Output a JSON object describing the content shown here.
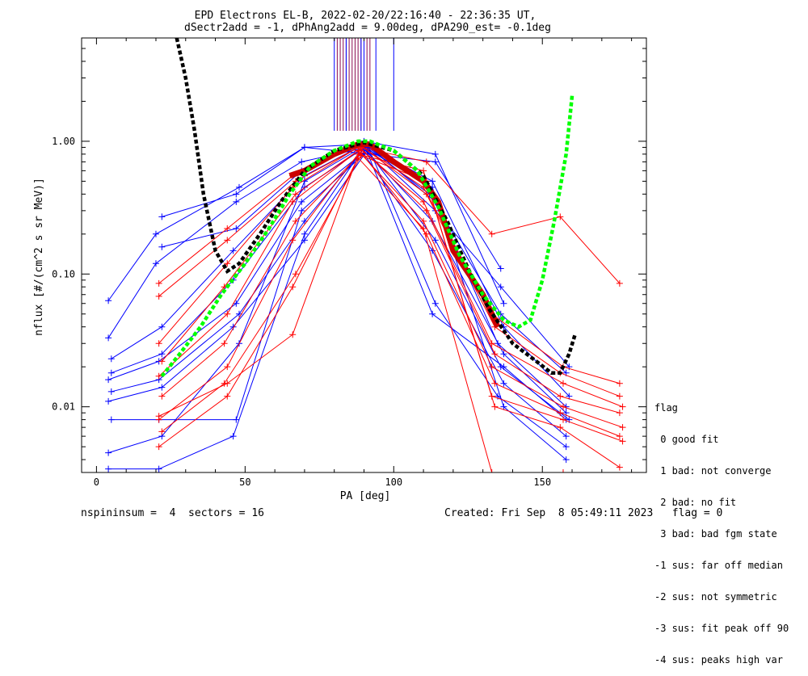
{
  "title_line1": "EPD Electrons EL-B, 2022-02-20/22:16:40 - 22:36:35 UT,",
  "title_line2": "dSectr2add = -1, dPhAng2add = 9.00deg, dPA290_est=  -0.1deg",
  "footer_left": "nspininsum =  4  sectors = 16",
  "footer_right": "Created: Fri Sep  8 05:49:11 2023   flag = 0",
  "flag_legend": {
    "title": "flag",
    "items": [
      " 0 good fit",
      " 1 bad: not converge",
      " 2 bad: no fit",
      " 3 bad: bad fgm state",
      "-1 sus: far off median",
      "-2 sus: not symmetric",
      "-3 sus: fit peak off 90",
      "-4 sus: peaks high var"
    ]
  },
  "colors": {
    "blue": "#0000ff",
    "red": "#ff0000",
    "median": "#cc0000",
    "black_fit": "#000000",
    "green_fit": "#00ff00",
    "vline_purple": "#8b0a50",
    "vline_blue": "#0000ff"
  },
  "chart_data": {
    "type": "line",
    "xlabel": "PA [deg]",
    "ylabel": "nflux [#/(cm^2 s sr MeV)]",
    "xlim": [
      -5,
      185
    ],
    "ylim": [
      0.0032,
      6.0
    ],
    "yscale": "log",
    "xticks": [
      0,
      50,
      100,
      150
    ],
    "yticks": [
      0.01,
      0.1,
      1.0
    ],
    "ytick_labels": [
      "0.01",
      "0.10",
      "1.00"
    ],
    "vertical_lines": {
      "ymin": 1.2,
      "purple_x": [
        81,
        82,
        83,
        84,
        85,
        86,
        87,
        88,
        89,
        90,
        91,
        92
      ],
      "blue_x": [
        80,
        84,
        89,
        90,
        94,
        100
      ]
    },
    "series": [
      {
        "color": "blue",
        "x": [
          4,
          20,
          48,
          70,
          90,
          113,
          137,
          158
        ],
        "y": [
          0.063,
          0.2,
          0.45,
          0.9,
          0.95,
          0.05,
          0.02,
          0.008
        ]
      },
      {
        "color": "blue",
        "x": [
          4,
          20,
          47,
          69,
          91,
          114,
          136,
          159
        ],
        "y": [
          0.033,
          0.12,
          0.35,
          0.7,
          0.9,
          0.3,
          0.08,
          0.02
        ]
      },
      {
        "color": "blue",
        "x": [
          5,
          22,
          46,
          70,
          90,
          112,
          136,
          158
        ],
        "y": [
          0.023,
          0.04,
          0.15,
          0.55,
          0.95,
          0.4,
          0.05,
          0.018
        ]
      },
      {
        "color": "blue",
        "x": [
          5,
          22,
          46,
          70,
          91,
          113,
          137,
          159
        ],
        "y": [
          0.018,
          0.025,
          0.09,
          0.45,
          0.92,
          0.5,
          0.04,
          0.012
        ]
      },
      {
        "color": "blue",
        "x": [
          4,
          21,
          47,
          69,
          92,
          114,
          135,
          158
        ],
        "y": [
          0.016,
          0.022,
          0.06,
          0.35,
          0.9,
          0.35,
          0.03,
          0.01
        ]
      },
      {
        "color": "blue",
        "x": [
          5,
          21,
          48,
          70,
          90,
          113,
          137,
          158
        ],
        "y": [
          0.013,
          0.016,
          0.05,
          0.25,
          0.88,
          0.25,
          0.025,
          0.009
        ]
      },
      {
        "color": "blue",
        "x": [
          4,
          22,
          46,
          70,
          91,
          114,
          136,
          159
        ],
        "y": [
          0.011,
          0.014,
          0.04,
          0.18,
          0.85,
          0.18,
          0.02,
          0.008
        ]
      },
      {
        "color": "blue",
        "x": [
          5,
          21,
          47,
          69,
          90,
          113,
          137,
          158
        ],
        "y": [
          0.008,
          0.008,
          0.008,
          0.3,
          0.8,
          0.15,
          0.015,
          0.006
        ]
      },
      {
        "color": "blue",
        "x": [
          4,
          22,
          48,
          70,
          91,
          114,
          135,
          158
        ],
        "y": [
          0.0045,
          0.006,
          0.03,
          0.5,
          0.95,
          0.06,
          0.012,
          0.005
        ]
      },
      {
        "color": "blue",
        "x": [
          4,
          21,
          46,
          70,
          90,
          113,
          137,
          158
        ],
        "y": [
          0.0034,
          0.0034,
          0.006,
          0.2,
          0.9,
          0.45,
          0.01,
          0.004
        ]
      },
      {
        "color": "blue",
        "x": [
          22,
          47,
          70,
          92,
          114,
          136
        ],
        "y": [
          0.27,
          0.4,
          0.9,
          0.8,
          0.7,
          0.11
        ]
      },
      {
        "color": "blue",
        "x": [
          22,
          47,
          69,
          90,
          114,
          137
        ],
        "y": [
          0.16,
          0.22,
          0.6,
          1.0,
          0.8,
          0.06
        ]
      },
      {
        "color": "red",
        "x": [
          21,
          44,
          66,
          88,
          110,
          133,
          157,
          176
        ],
        "y": [
          0.085,
          0.22,
          0.55,
          0.95,
          0.45,
          0.05,
          0.02,
          0.015
        ]
      },
      {
        "color": "red",
        "x": [
          21,
          44,
          67,
          89,
          111,
          134,
          156,
          176
        ],
        "y": [
          0.068,
          0.18,
          0.5,
          0.92,
          0.4,
          0.04,
          0.018,
          0.012
        ]
      },
      {
        "color": "red",
        "x": [
          21,
          44,
          66,
          88,
          110,
          133,
          157,
          177
        ],
        "y": [
          0.03,
          0.12,
          0.45,
          0.9,
          0.35,
          0.03,
          0.015,
          0.01
        ]
      },
      {
        "color": "red",
        "x": [
          22,
          43,
          67,
          89,
          111,
          134,
          156,
          176
        ],
        "y": [
          0.022,
          0.08,
          0.4,
          0.88,
          0.3,
          0.025,
          0.012,
          0.009
        ]
      },
      {
        "color": "red",
        "x": [
          21,
          44,
          66,
          88,
          110,
          133,
          157,
          177
        ],
        "y": [
          0.017,
          0.05,
          0.35,
          0.85,
          0.25,
          0.02,
          0.01,
          0.007
        ]
      },
      {
        "color": "red",
        "x": [
          22,
          43,
          67,
          89,
          111,
          134,
          156,
          176
        ],
        "y": [
          0.012,
          0.03,
          0.25,
          0.82,
          0.2,
          0.015,
          0.009,
          0.006
        ]
      },
      {
        "color": "red",
        "x": [
          21,
          44,
          66,
          88,
          110,
          133,
          157,
          177
        ],
        "y": [
          0.008,
          0.02,
          0.18,
          0.8,
          0.6,
          0.012,
          0.008,
          0.0055
        ]
      },
      {
        "color": "red",
        "x": [
          22,
          43,
          67,
          89,
          111,
          134,
          156,
          176
        ],
        "y": [
          0.0065,
          0.015,
          0.1,
          0.78,
          0.5,
          0.01,
          0.007,
          0.0035
        ]
      },
      {
        "color": "red",
        "x": [
          21,
          44,
          66,
          88,
          110,
          133,
          157
        ],
        "y": [
          0.005,
          0.012,
          0.08,
          0.75,
          0.22,
          0.0032,
          0.0032
        ]
      },
      {
        "color": "red",
        "x": [
          21,
          44,
          66,
          89,
          111,
          133,
          156,
          176
        ],
        "y": [
          0.0085,
          0.015,
          0.035,
          0.9,
          0.7,
          0.2,
          0.27,
          0.085
        ]
      }
    ],
    "median": {
      "x": [
        65,
        70,
        80,
        88,
        92,
        100,
        110,
        115,
        120,
        130,
        135
      ],
      "y": [
        0.55,
        0.6,
        0.8,
        0.95,
        0.95,
        0.7,
        0.5,
        0.35,
        0.15,
        0.07,
        0.04
      ]
    },
    "fits": [
      {
        "name": "black",
        "x": [
          27,
          30,
          33,
          36,
          40,
          44,
          48,
          55,
          62,
          70,
          80,
          90,
          100,
          110,
          118,
          125,
          132,
          140,
          148,
          153,
          156,
          159,
          161
        ],
        "y": [
          6.0,
          3.0,
          1.2,
          0.4,
          0.15,
          0.105,
          0.12,
          0.2,
          0.35,
          0.6,
          0.85,
          0.98,
          0.85,
          0.55,
          0.25,
          0.11,
          0.055,
          0.03,
          0.022,
          0.018,
          0.018,
          0.025,
          0.035
        ]
      },
      {
        "name": "green",
        "x": [
          22,
          28,
          35,
          42,
          50,
          58,
          65,
          72,
          80,
          88,
          92,
          100,
          108,
          115,
          122,
          130,
          137,
          142,
          146,
          150,
          154,
          158,
          160
        ],
        "y": [
          0.017,
          0.025,
          0.04,
          0.07,
          0.12,
          0.22,
          0.4,
          0.65,
          0.85,
          1.0,
          1.0,
          0.85,
          0.6,
          0.32,
          0.14,
          0.07,
          0.045,
          0.04,
          0.045,
          0.09,
          0.25,
          0.8,
          2.2
        ]
      }
    ]
  }
}
